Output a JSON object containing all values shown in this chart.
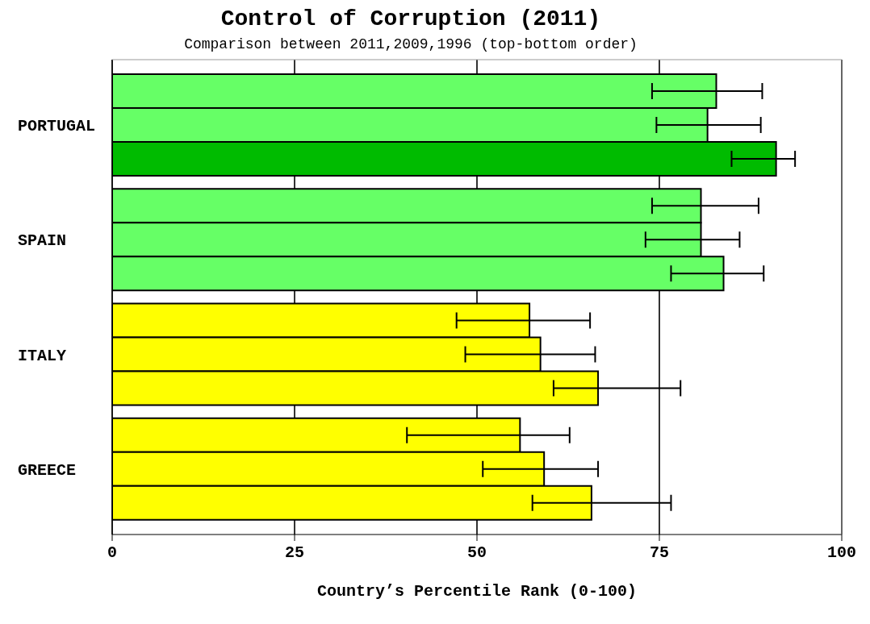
{
  "chart_data": {
    "type": "bar",
    "orientation": "horizontal",
    "title": "Control of Corruption (2011)",
    "subtitle": "Comparison between 2011,2009,1996 (top-bottom order)",
    "xlabel": "Country’s Percentile Rank (0-100)",
    "categories": [
      "PORTUGAL",
      "SPAIN",
      "ITALY",
      "GREECE"
    ],
    "xlim": [
      0,
      100
    ],
    "xticks": [
      0,
      25,
      50,
      75,
      100
    ],
    "grid": "x",
    "series": [
      {
        "values": [
          82.8,
          80.7,
          57.2,
          55.9
        ],
        "colors": [
          "#66ff66",
          "#66ff66",
          "#ffff00",
          "#ffff00"
        ],
        "errors": [
          [
            74.0,
            89.1
          ],
          [
            74.0,
            88.6
          ],
          [
            47.2,
            65.5
          ],
          [
            40.4,
            62.7
          ]
        ]
      },
      {
        "values": [
          81.6,
          80.7,
          58.7,
          59.2
        ],
        "colors": [
          "#66ff66",
          "#66ff66",
          "#ffff00",
          "#ffff00"
        ],
        "errors": [
          [
            74.6,
            88.9
          ],
          [
            73.1,
            86.0
          ],
          [
            48.4,
            66.2
          ],
          [
            50.8,
            66.6
          ]
        ]
      },
      {
        "values": [
          91.0,
          83.8,
          66.6,
          65.7
        ],
        "colors": [
          "#00bb00",
          "#66ff66",
          "#ffff00",
          "#ffff00"
        ],
        "errors": [
          [
            84.9,
            93.6
          ],
          [
            76.6,
            89.3
          ],
          [
            60.5,
            77.9
          ],
          [
            57.6,
            76.6
          ]
        ]
      }
    ]
  }
}
